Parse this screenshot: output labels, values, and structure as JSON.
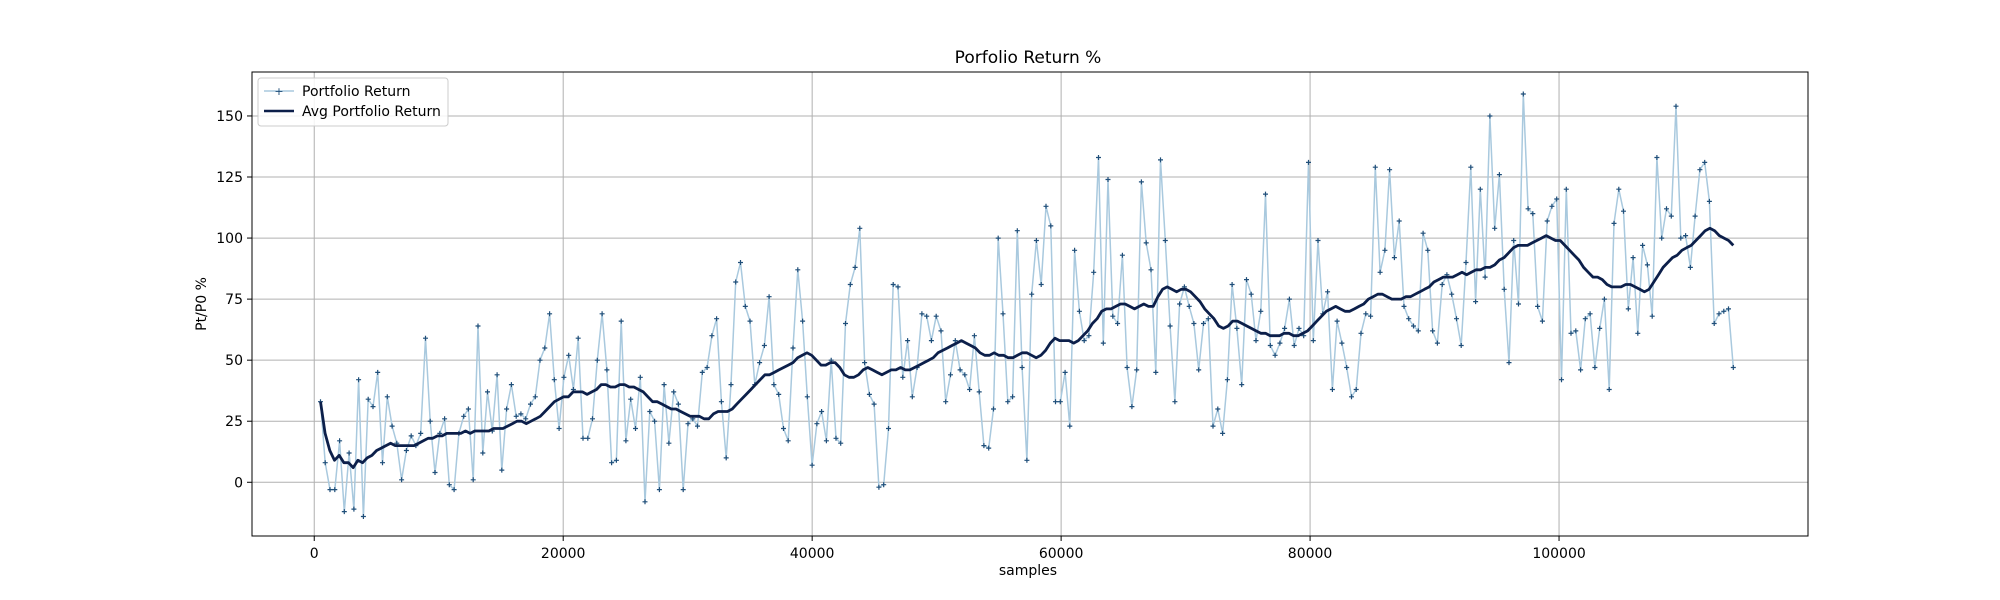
{
  "chart_data": {
    "type": "line",
    "title": "Porfolio Return %",
    "xlabel": "samples",
    "ylabel": "Pt/P0 %",
    "xlim": [
      -5000,
      120000
    ],
    "ylim": [
      -22,
      168
    ],
    "xticks": [
      0,
      20000,
      40000,
      60000,
      80000,
      100000
    ],
    "yticks": [
      0,
      25,
      50,
      75,
      100,
      125,
      150
    ],
    "grid": true,
    "legend_position": "top-left",
    "series": [
      {
        "name": "Portfolio Return",
        "color": "#a9c9de",
        "marker": "plus",
        "values": [
          33,
          8,
          -3,
          -3,
          17,
          -12,
          12,
          -11,
          42,
          -14,
          34,
          31,
          45,
          8,
          35,
          23,
          16,
          1,
          13,
          19,
          15,
          20,
          59,
          25,
          4,
          20,
          26,
          -1,
          -3,
          20,
          27,
          30,
          1,
          64,
          12,
          37,
          21,
          44,
          5,
          30,
          40,
          27,
          28,
          26,
          32,
          35,
          50,
          55,
          69,
          42,
          22,
          43,
          52,
          38,
          59,
          18,
          18,
          26,
          50,
          69,
          46,
          8,
          9,
          66,
          17,
          34,
          22,
          43,
          -8,
          29,
          25,
          -3,
          40,
          16,
          37,
          32,
          -3,
          24,
          26,
          23,
          45,
          47,
          60,
          67,
          33,
          10,
          40,
          82,
          90,
          72,
          66,
          40,
          49,
          56,
          76,
          40,
          36,
          22,
          17,
          55,
          87,
          66,
          35,
          7,
          24,
          29,
          17,
          50,
          18,
          16,
          65,
          81,
          88,
          104,
          49,
          36,
          32,
          -2,
          -1,
          22,
          81,
          80,
          43,
          58,
          35,
          47,
          69,
          68,
          58,
          68,
          62,
          33,
          44,
          58,
          46,
          44,
          38,
          60,
          37,
          15,
          14,
          30,
          100,
          69,
          33,
          35,
          103,
          47,
          9,
          77,
          99,
          81,
          113,
          105,
          33,
          33,
          45,
          23,
          95,
          70,
          58,
          60,
          86,
          133,
          57,
          124,
          68,
          65,
          93,
          47,
          31,
          46,
          123,
          98,
          87,
          45,
          132,
          99,
          64,
          33,
          73,
          80,
          72,
          65,
          46,
          65,
          67,
          23,
          30,
          20,
          42,
          81,
          63,
          40,
          83,
          77,
          58,
          70,
          118,
          56,
          52,
          57,
          63,
          75,
          56,
          63,
          60,
          131,
          58,
          99,
          69,
          78,
          38,
          66,
          57,
          47,
          35,
          38,
          61,
          69,
          68,
          129,
          86,
          95,
          128,
          92,
          107,
          72,
          67,
          64,
          62,
          102,
          95,
          62,
          57,
          81,
          85,
          77,
          67,
          56,
          90,
          129,
          74,
          120,
          84,
          150,
          104,
          126,
          79,
          49,
          99,
          73,
          159,
          112,
          110,
          72,
          66,
          107,
          113,
          116,
          42,
          120,
          61,
          62,
          46,
          67,
          69,
          47,
          63,
          75,
          38,
          106,
          120,
          111,
          71,
          92,
          61,
          97,
          89,
          68,
          133,
          100,
          112,
          109,
          154,
          100,
          101,
          88,
          109,
          128,
          131,
          115,
          65,
          69,
          70,
          71,
          47
        ],
        "note_x": "samples 500 to 114000, evenly spaced"
      },
      {
        "name": "Avg Portfolio Return",
        "color": "#0c1f4a",
        "values": [
          33,
          20,
          13,
          9,
          11,
          8,
          8,
          6,
          9,
          8,
          10,
          11,
          13,
          14,
          15,
          16,
          15,
          15,
          15,
          15,
          15,
          16,
          17,
          18,
          18,
          19,
          19,
          20,
          20,
          20,
          20,
          21,
          20,
          21,
          21,
          21,
          21,
          22,
          22,
          22,
          23,
          24,
          25,
          25,
          24,
          25,
          26,
          27,
          29,
          31,
          33,
          34,
          35,
          35,
          37,
          37,
          37,
          36,
          37,
          38,
          40,
          40,
          39,
          39,
          40,
          40,
          39,
          39,
          38,
          37,
          35,
          33,
          33,
          32,
          31,
          30,
          30,
          29,
          28,
          27,
          27,
          27,
          26,
          26,
          28,
          29,
          29,
          29,
          30,
          32,
          34,
          36,
          38,
          40,
          42,
          44,
          44,
          45,
          46,
          47,
          48,
          49,
          51,
          52,
          53,
          52,
          50,
          48,
          48,
          49,
          49,
          47,
          44,
          43,
          43,
          44,
          46,
          47,
          46,
          45,
          44,
          45,
          46,
          46,
          47,
          46,
          46,
          47,
          48,
          49,
          50,
          51,
          53,
          54,
          55,
          56,
          57,
          58,
          57,
          56,
          55,
          53,
          52,
          52,
          53,
          52,
          52,
          51,
          51,
          52,
          53,
          53,
          52,
          51,
          52,
          54,
          57,
          59,
          58,
          58,
          58,
          57,
          58,
          60,
          62,
          65,
          67,
          70,
          71,
          71,
          72,
          73,
          73,
          72,
          71,
          72,
          73,
          72,
          72,
          76,
          79,
          80,
          79,
          78,
          79,
          79,
          78,
          76,
          74,
          71,
          69,
          67,
          64,
          63,
          64,
          66,
          66,
          65,
          64,
          63,
          62,
          61,
          61,
          60,
          60,
          60,
          61,
          61,
          60,
          60,
          61,
          62,
          64,
          66,
          68,
          70,
          71,
          72,
          71,
          70,
          70,
          71,
          72,
          73,
          75,
          76,
          77,
          77,
          76,
          75,
          75,
          75,
          76,
          76,
          77,
          78,
          79,
          80,
          82,
          83,
          84,
          84,
          84,
          85,
          86,
          85,
          86,
          87,
          87,
          88,
          88,
          89,
          91,
          92,
          94,
          96,
          97,
          97,
          97,
          98,
          99,
          100,
          101,
          100,
          99,
          99,
          97,
          95,
          93,
          91,
          88,
          86,
          84,
          84,
          83,
          81,
          80,
          80,
          80,
          81,
          81,
          80,
          79,
          78,
          79,
          82,
          85,
          88,
          90,
          92,
          93,
          95,
          96,
          97,
          99,
          101,
          103,
          104,
          103,
          101,
          100,
          99,
          97
        ]
      }
    ]
  },
  "legend": {
    "items": [
      "Portfolio Return",
      "Avg Portfolio Return"
    ]
  }
}
